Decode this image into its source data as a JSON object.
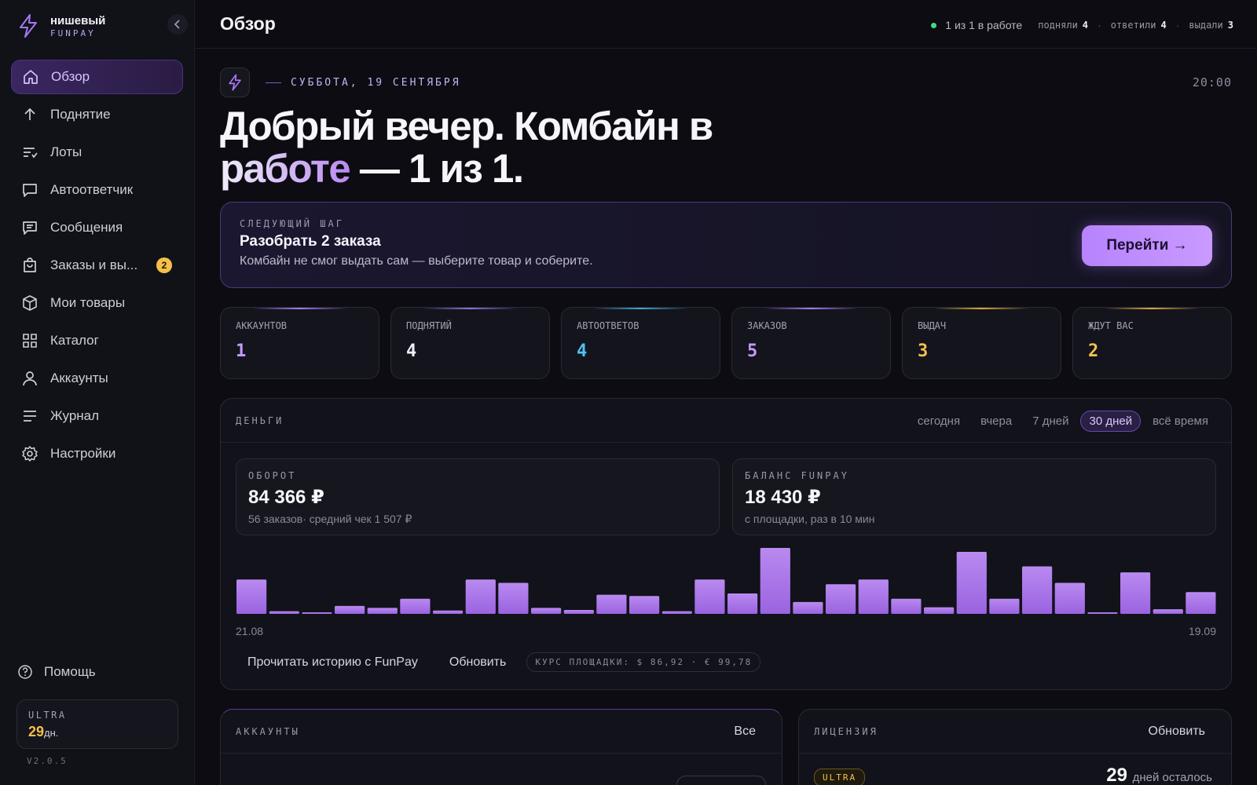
{
  "brand": {
    "name": "нишевый",
    "sub": "FUNPAY"
  },
  "sidebar": {
    "items": [
      {
        "label": "Обзор",
        "icon": "home-icon",
        "active": true
      },
      {
        "label": "Поднятие",
        "icon": "arrow-up-icon"
      },
      {
        "label": "Лоты",
        "icon": "list-icon"
      },
      {
        "label": "Автоответчик",
        "icon": "chat-icon"
      },
      {
        "label": "Сообщения",
        "icon": "message-icon"
      },
      {
        "label": "Заказы и вы...",
        "icon": "bag-icon",
        "badge": "2"
      },
      {
        "label": "Мои товары",
        "icon": "box-icon"
      },
      {
        "label": "Каталог",
        "icon": "grid-icon"
      },
      {
        "label": "Аккаунты",
        "icon": "user-icon"
      },
      {
        "label": "Журнал",
        "icon": "journal-icon"
      },
      {
        "label": "Настройки",
        "icon": "gear-icon"
      }
    ],
    "help": "Помощь",
    "plan": {
      "name": "ULTRA",
      "days": "29",
      "days_unit": "дн."
    },
    "version": "V2.0.5"
  },
  "header": {
    "title": "Обзор",
    "status": "1 из 1 в работе",
    "stats": [
      {
        "label": "подняли",
        "value": "4"
      },
      {
        "label": "ответили",
        "value": "4"
      },
      {
        "label": "выдали",
        "value": "3"
      }
    ]
  },
  "greeting": {
    "date": "СУББОТА, 19 СЕНТЯБРЯ",
    "time": "20:00",
    "line1": "Добрый вечер. Комбайн в",
    "accent": "работе",
    "rest": " — 1 из 1."
  },
  "next_step": {
    "kicker": "СЛЕДУЮЩИЙ ШАГ",
    "title": "Разобрать 2 заказа",
    "desc": "Комбайн не смог выдать сам — выберите товар и соберите.",
    "button": "Перейти →"
  },
  "kpis": [
    {
      "label": "АККАУНТОВ",
      "value": "1",
      "color": "#c49bff"
    },
    {
      "label": "ПОДНЯТИЙ",
      "value": "4",
      "color": "#f2f0f8"
    },
    {
      "label": "АВТООТВЕТОВ",
      "value": "4",
      "color": "#4cc3f0"
    },
    {
      "label": "ЗАКАЗОВ",
      "value": "5",
      "color": "#c49bff"
    },
    {
      "label": "ВЫДАЧ",
      "value": "3",
      "color": "#f4c04a"
    },
    {
      "label": "ЖДУТ ВАС",
      "value": "2",
      "color": "#f4c04a"
    }
  ],
  "money": {
    "kicker": "ДЕНЬГИ",
    "ranges": [
      "сегодня",
      "вчера",
      "7 дней",
      "30 дней",
      "всё время"
    ],
    "active_range": "30 дней",
    "turnover": {
      "label": "ОБОРОТ",
      "value": "84 366 ₽",
      "sub": "56 заказов· средний чек 1 507 ₽"
    },
    "balance": {
      "label": "БАЛАНС FUNPAY",
      "value": "18 430 ₽",
      "sub": "с площадки, раз в 10 мин"
    },
    "x_start": "21.08",
    "x_end": "19.09",
    "actions": [
      "Прочитать историю с FunPay",
      "Обновить"
    ],
    "rate": "КУРС ПЛОЩАДКИ: $ 86,92 · € 99,78"
  },
  "chart_data": {
    "type": "bar",
    "x_start": "21.08",
    "x_end": "19.09",
    "values": [
      0.52,
      0.04,
      0.01,
      0.12,
      0.09,
      0.23,
      0.05,
      0.52,
      0.47,
      0.09,
      0.06,
      0.29,
      0.27,
      0.04,
      0.52,
      0.31,
      1.0,
      0.18,
      0.45,
      0.52,
      0.23,
      0.1,
      0.94,
      0.23,
      0.72,
      0.47,
      0.01,
      0.63,
      0.07,
      0.33
    ],
    "color": "#b383f0"
  },
  "accounts_card": {
    "kicker": "АККАУНТЫ",
    "link": "Все"
  },
  "license_card": {
    "kicker": "ЛИЦЕНЗИЯ",
    "link": "Обновить",
    "tag": "ULTRA",
    "days": "29",
    "days_label": "дней осталось"
  }
}
